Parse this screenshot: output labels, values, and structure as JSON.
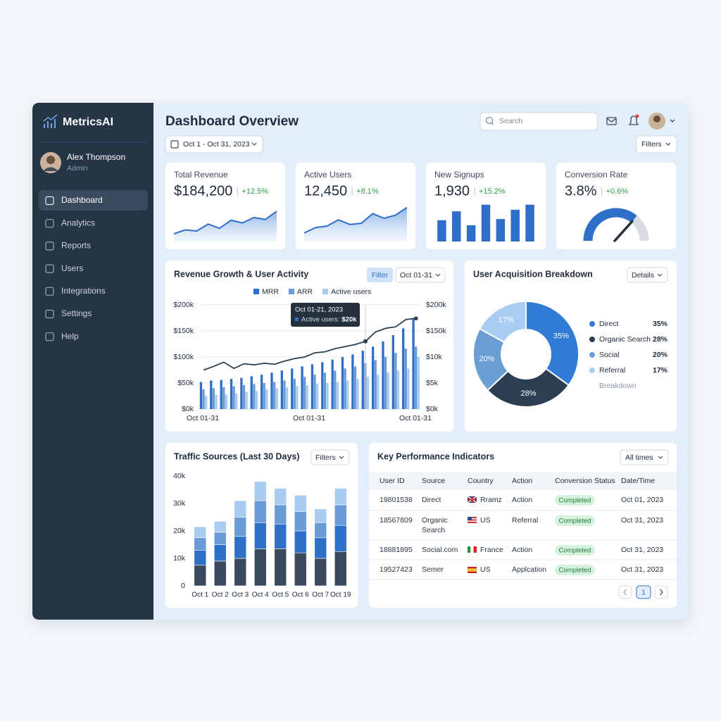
{
  "brand": "MetricsAI",
  "user": {
    "name": "Alex Thompson",
    "role": "Admin"
  },
  "nav": [
    "Dashboard",
    "Analytics",
    "Reports",
    "Users",
    "Integrations",
    "Settings",
    "Help"
  ],
  "header": {
    "title": "Dashboard Overview",
    "search": "Search",
    "date_range": "Oct 1 - Oct 31, 2023",
    "filters": "Filters"
  },
  "kpis": [
    {
      "label": "Total Revenue",
      "value": "$184,200",
      "change": "+12.5%",
      "chart": {
        "type": "area",
        "color": "#2f6fc9",
        "ylim": [
          0,
          100
        ],
        "values": [
          20,
          30,
          27,
          45,
          34,
          55,
          48,
          62,
          57,
          78
        ]
      }
    },
    {
      "label": "Active Users",
      "value": "12,450",
      "change": "+8.1%",
      "chart": {
        "type": "area",
        "color": "#2f6fc9",
        "ylim": [
          0,
          100
        ],
        "values": [
          22,
          36,
          40,
          56,
          44,
          47,
          72,
          60,
          68,
          88
        ]
      }
    },
    {
      "label": "New Signups",
      "value": "1,930",
      "change": "+15.2%",
      "chart": {
        "type": "bar",
        "color": "#2f6fc9",
        "ylim": [
          0,
          100
        ],
        "values": [
          55,
          78,
          42,
          95,
          58,
          82,
          95
        ]
      }
    },
    {
      "label": "Conversion Rate",
      "value": "3.8%",
      "change": "+0.6%",
      "chart": {
        "type": "gauge",
        "color": "#2f6fc9",
        "ylim": [
          0,
          100
        ],
        "value": 72
      }
    }
  ],
  "revenue_chart": {
    "type": "bar-line",
    "title": "Revenue Growth & User Activity",
    "filter": "Filter",
    "range": "Oct 01-31",
    "ylim": [
      0,
      200000
    ],
    "yticks": [
      {
        "value": 0,
        "label": "$0k"
      },
      {
        "value": 50000,
        "label": "$50k"
      },
      {
        "value": 100000,
        "label": "$100k"
      },
      {
        "value": 150000,
        "label": "$150k"
      },
      {
        "value": 200000,
        "label": "$200k"
      }
    ],
    "y2_labels": [
      "$0k",
      "$5k",
      "$10k",
      "$150k",
      "$200k"
    ],
    "x_labels": [
      "Oct 01-31",
      "Oct 01-31",
      "Oct 01-31"
    ],
    "grid": true,
    "series": [
      {
        "name": "MRR",
        "color": "#2f6fc9",
        "values": [
          52000,
          55000,
          56000,
          58000,
          60000,
          63000,
          66000,
          70000,
          74000,
          78000,
          82000,
          86000,
          90000,
          95000,
          100000,
          105000,
          112000,
          120000,
          130000,
          142000,
          155000,
          175000
        ]
      },
      {
        "name": "ARR",
        "color": "#6b9bd6",
        "values": [
          38000,
          40000,
          42000,
          44000,
          46000,
          48000,
          50000,
          52000,
          55000,
          58000,
          62000,
          66000,
          70000,
          74000,
          78000,
          82000,
          88000,
          94000,
          100000,
          108000,
          116000,
          120000
        ]
      },
      {
        "name": "Active users",
        "color": "#a8cbf0",
        "values": [
          25000,
          27000,
          28000,
          30000,
          33000,
          35000,
          38000,
          40000,
          42000,
          44000,
          46000,
          48000,
          50000,
          52000,
          55000,
          58000,
          62000,
          66000,
          70000,
          74000,
          78000,
          100000
        ]
      },
      {
        "color": "#2d3e50",
        "values": [
          75000,
          82000,
          90000,
          78000,
          87000,
          85000,
          88000,
          86000,
          92000,
          97000,
          100000,
          108000,
          110000,
          116000,
          120000,
          124000,
          130000,
          148000,
          155000,
          158000,
          172000,
          174000
        ]
      }
    ],
    "tooltip": {
      "title": "Oct 01-21, 2023",
      "label": "Active users:",
      "value": "$20k"
    }
  },
  "acquisition": {
    "type": "donut",
    "title": "User Acquisition Breakdown",
    "button": "Details",
    "categories": [
      "Direct",
      "Organic Search",
      "Social",
      "Referral"
    ],
    "values": [
      35,
      28,
      20,
      17
    ],
    "value_labels": [
      "35%",
      "28%",
      "20%",
      "17%"
    ],
    "colors": [
      "#2f7bd6",
      "#2e3e52",
      "#6c9ed6",
      "#a9cdf2"
    ],
    "note": "Breakdown"
  },
  "traffic": {
    "type": "stacked-bar",
    "title": "Traffic Sources (Last 30 Days)",
    "button": "Filters",
    "categories": [
      "Oct 1",
      "Oct 2",
      "Oct 3",
      "Oct 4",
      "Oct 5",
      "Oct 6",
      "Oct 7",
      "Oct 19"
    ],
    "ylim": [
      0,
      40000
    ],
    "yticks": [
      0,
      {
        "value": 10000,
        "label": "10k"
      },
      {
        "value": 20000,
        "label": "20k"
      },
      {
        "value": 30000,
        "label": "30k"
      },
      {
        "value": 40000,
        "label": "40k"
      }
    ],
    "series": [
      {
        "color": "#3a4a5c",
        "values": [
          7500,
          9000,
          10000,
          13500,
          13500,
          12000,
          10000,
          12500
        ]
      },
      {
        "color": "#2f6fc9",
        "values": [
          5500,
          6000,
          8000,
          9500,
          9000,
          8000,
          7500,
          9500
        ]
      },
      {
        "color": "#6b9bd6",
        "values": [
          4500,
          4500,
          7000,
          8000,
          7000,
          7000,
          5500,
          7500
        ]
      },
      {
        "color": "#a8cbf0",
        "values": [
          4000,
          4000,
          6000,
          7000,
          6000,
          6000,
          5000,
          6000
        ]
      }
    ]
  },
  "table": {
    "title": "Key Performance Indicators",
    "button": "All times",
    "headers": [
      "User ID",
      "Source",
      "Country",
      "Action",
      "Conversion Status",
      "Date/Time"
    ],
    "rows": [
      [
        "19801538",
        "Direct",
        "Rramz",
        "Action",
        "Completed",
        "Oct 01, 2023"
      ],
      [
        "18567809",
        "Organic Search",
        "US",
        "Referral",
        "Completed",
        "Oct 31, 2023"
      ],
      [
        "18881895",
        "Social.com",
        "France",
        "Action",
        "Completed",
        "Oct 31, 2023"
      ],
      [
        "19527423",
        "Semer",
        "US",
        "Applcation",
        "Completed",
        "Oct 31, 2023"
      ]
    ]
  },
  "pagination": {
    "page": "1"
  }
}
